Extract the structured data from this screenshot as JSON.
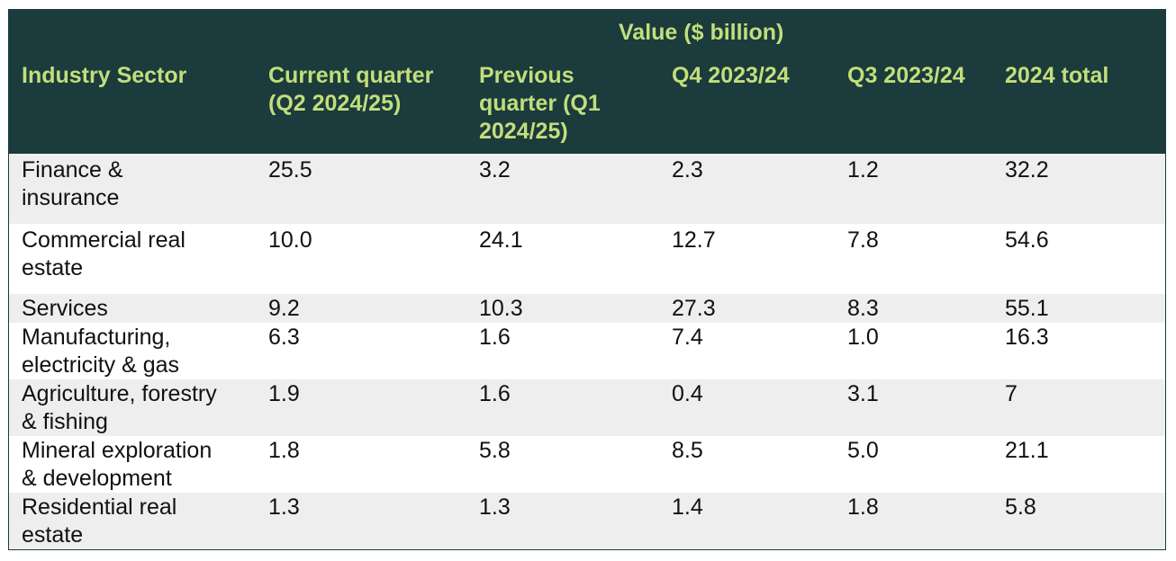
{
  "header": {
    "group_label": "Value ($ billion)",
    "col_sector": "Industry Sector",
    "col_current": [
      "Current quarter",
      "(Q2 2024/25)"
    ],
    "col_previous": [
      "Previous",
      "quarter (Q1",
      "2024/25)"
    ],
    "col_q4": "Q4 2023/24",
    "col_q3": "Q3 2023/24",
    "col_total": "2024 total"
  },
  "rows": [
    {
      "sector": [
        "Finance &",
        "insurance"
      ],
      "current": "25.5",
      "previous": "3.2",
      "q4": "2.3",
      "q3": "1.2",
      "total": "32.2"
    },
    {
      "sector": [
        "Commercial real",
        "estate"
      ],
      "current": "10.0",
      "previous": "24.1",
      "q4": "12.7",
      "q3": "7.8",
      "total": "54.6"
    },
    {
      "sector": [
        "Services"
      ],
      "current": "9.2",
      "previous": "10.3",
      "q4": "27.3",
      "q3": "8.3",
      "total": "55.1"
    },
    {
      "sector": [
        "Manufacturing,",
        "electricity & gas"
      ],
      "current": "6.3",
      "previous": "1.6",
      "q4": "7.4",
      "q3": "1.0",
      "total": "16.3"
    },
    {
      "sector": [
        "Agriculture, forestry",
        "& fishing"
      ],
      "current": "1.9",
      "previous": "1.6",
      "q4": "0.4",
      "q3": "3.1",
      "total": "7"
    },
    {
      "sector": [
        "Mineral exploration",
        "& development"
      ],
      "current": "1.8",
      "previous": "5.8",
      "q4": "8.5",
      "q3": "5.0",
      "total": "21.1"
    },
    {
      "sector": [
        "Residential real",
        "estate"
      ],
      "current": "1.3",
      "previous": "1.3",
      "q4": "1.4",
      "q3": "1.8",
      "total": "5.8"
    }
  ],
  "colors": {
    "header_bg": "#1b3b3c",
    "header_text": "#c2de7c",
    "row_shade": "#eeeeee"
  }
}
